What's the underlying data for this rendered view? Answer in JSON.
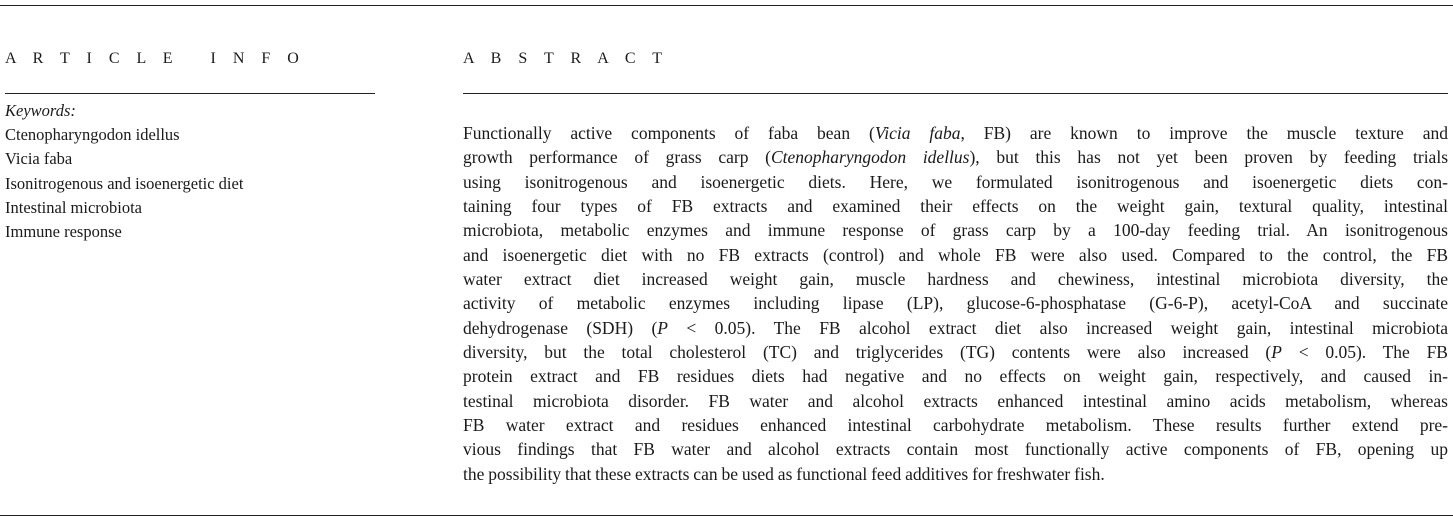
{
  "article_info": {
    "heading": "A R T I C L E   I N F O",
    "keywords_label": "Keywords:",
    "keywords": [
      "Ctenopharyngodon idellus",
      "Vicia faba",
      "Isonitrogenous and isoenergetic diet",
      "Intestinal microbiota",
      "Immune response"
    ]
  },
  "abstract": {
    "heading": "A B S T R A C T",
    "lines": [
      [
        {
          "t": "Functionally active components of faba bean ("
        },
        {
          "t": "Vicia faba",
          "i": true
        },
        {
          "t": ", FB) are known to improve the muscle texture and"
        }
      ],
      [
        {
          "t": "growth performance of grass carp ("
        },
        {
          "t": "Ctenopharyngodon idellus",
          "i": true
        },
        {
          "t": "), but this has not yet been proven by feeding trials"
        }
      ],
      [
        {
          "t": "using isonitrogenous and isoenergetic diets. Here, we formulated isonitrogenous and isoenergetic diets con-"
        }
      ],
      [
        {
          "t": "taining four types of FB extracts and examined their effects on the weight gain, textural quality, intestinal"
        }
      ],
      [
        {
          "t": "microbiota, metabolic enzymes and immune response of grass carp by a 100-day feeding trial. An isonitrogenous"
        }
      ],
      [
        {
          "t": "and isoenergetic diet with no FB extracts (control) and whole FB were also used. Compared to the control, the FB"
        }
      ],
      [
        {
          "t": "water extract diet increased weight gain, muscle hardness and chewiness, intestinal microbiota diversity, the"
        }
      ],
      [
        {
          "t": "activity of metabolic enzymes including lipase (LP), glucose-6-phosphatase (G-6-P), acetyl-CoA and succinate"
        }
      ],
      [
        {
          "t": "dehydrogenase (SDH) ("
        },
        {
          "t": "P",
          "i": true
        },
        {
          "t": " < 0.05). The FB alcohol extract diet also increased weight gain, intestinal microbiota"
        }
      ],
      [
        {
          "t": "diversity, but the total cholesterol (TC) and triglycerides (TG) contents were also increased ("
        },
        {
          "t": "P",
          "i": true
        },
        {
          "t": " < 0.05). The FB"
        }
      ],
      [
        {
          "t": "protein extract and FB residues diets had negative and no effects on weight gain, respectively, and caused in-"
        }
      ],
      [
        {
          "t": "testinal microbiota disorder. FB water and alcohol extracts enhanced intestinal amino acids metabolism, whereas"
        }
      ],
      [
        {
          "t": "FB water extract and residues enhanced intestinal carbohydrate metabolism. These results further extend pre-"
        }
      ],
      [
        {
          "t": "vious findings that FB water and alcohol extracts contain most functionally active components of FB, opening up"
        }
      ],
      [
        {
          "t": "the possibility that these extracts can be used as functional feed additives for freshwater fish."
        }
      ]
    ]
  }
}
